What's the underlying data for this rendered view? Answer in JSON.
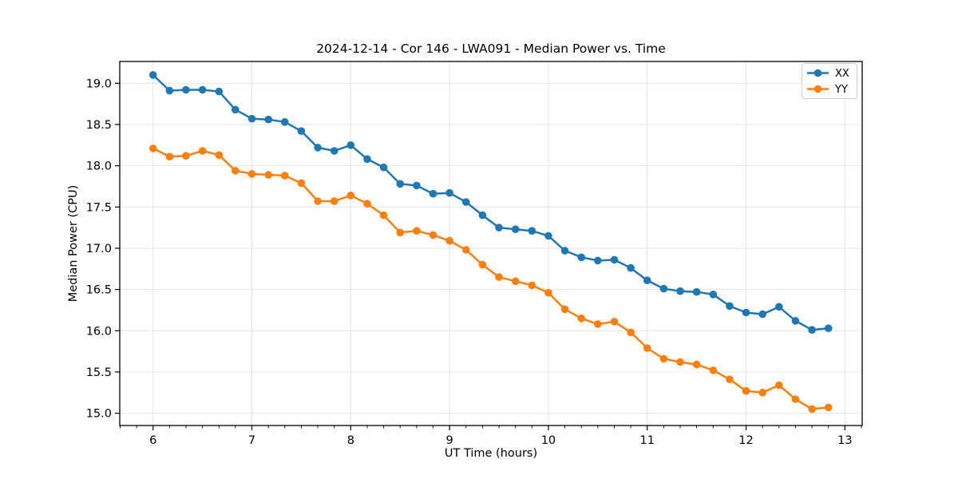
{
  "figure": {
    "title": "2024-12-14 - Cor 146 - LWA091 - Median Power vs. Time",
    "xlabel": "UT Time (hours)",
    "ylabel": "Median Power (CPU)"
  },
  "legend": {
    "position": "upper right",
    "items": [
      {
        "label": "XX",
        "color": "#1f77b4"
      },
      {
        "label": "YY",
        "color": "#ff7f0e"
      }
    ]
  },
  "chart_data": {
    "type": "line",
    "title": "2024-12-14 - Cor 146 - LWA091 - Median Power vs. Time",
    "xlabel": "UT Time (hours)",
    "ylabel": "Median Power (CPU)",
    "grid": true,
    "legend_position": "upper right",
    "marker": "o",
    "xlim": [
      5.663,
      13.175
    ],
    "ylim": [
      14.851,
      19.264
    ],
    "xticks": [
      6,
      7,
      8,
      9,
      10,
      11,
      12,
      13
    ],
    "xtick_labels": [
      "6",
      "7",
      "8",
      "9",
      "10",
      "11",
      "12",
      "13"
    ],
    "yticks": [
      15.0,
      15.5,
      16.0,
      16.5,
      17.0,
      17.5,
      18.0,
      18.5,
      19.0
    ],
    "ytick_labels": [
      "15.0",
      "15.5",
      "16.0",
      "16.5",
      "17.0",
      "17.5",
      "18.0",
      "18.5",
      "19.0"
    ],
    "minor_xtick_step": 0.1666667,
    "x": [
      6.0,
      6.167,
      6.333,
      6.5,
      6.667,
      6.833,
      7.0,
      7.167,
      7.333,
      7.5,
      7.667,
      7.833,
      8.0,
      8.167,
      8.333,
      8.5,
      8.667,
      8.833,
      9.0,
      9.167,
      9.333,
      9.5,
      9.667,
      9.833,
      10.0,
      10.167,
      10.333,
      10.5,
      10.667,
      10.833,
      11.0,
      11.167,
      11.333,
      11.5,
      11.667,
      11.833,
      12.0,
      12.167,
      12.333,
      12.5,
      12.667,
      12.833
    ],
    "series": [
      {
        "name": "XX",
        "color": "#1f77b4",
        "values": [
          19.1,
          18.91,
          18.92,
          18.92,
          18.9,
          18.68,
          18.57,
          18.56,
          18.53,
          18.42,
          18.22,
          18.18,
          18.25,
          18.08,
          17.98,
          17.78,
          17.76,
          17.66,
          17.67,
          17.56,
          17.4,
          17.25,
          17.23,
          17.21,
          17.15,
          16.97,
          16.89,
          16.85,
          16.86,
          16.76,
          16.61,
          16.51,
          16.48,
          16.47,
          16.44,
          16.3,
          16.22,
          16.2,
          16.29,
          16.12,
          16.01,
          16.03
        ]
      },
      {
        "name": "YY",
        "color": "#ff7f0e",
        "values": [
          18.21,
          18.11,
          18.12,
          18.18,
          18.13,
          17.94,
          17.9,
          17.89,
          17.88,
          17.79,
          17.57,
          17.57,
          17.64,
          17.54,
          17.4,
          17.19,
          17.21,
          17.16,
          17.09,
          16.98,
          16.8,
          16.65,
          16.6,
          16.55,
          16.46,
          16.26,
          16.15,
          16.08,
          16.11,
          15.98,
          15.79,
          15.66,
          15.62,
          15.59,
          15.52,
          15.41,
          15.27,
          15.25,
          15.34,
          15.17,
          15.05,
          15.07
        ]
      }
    ]
  }
}
